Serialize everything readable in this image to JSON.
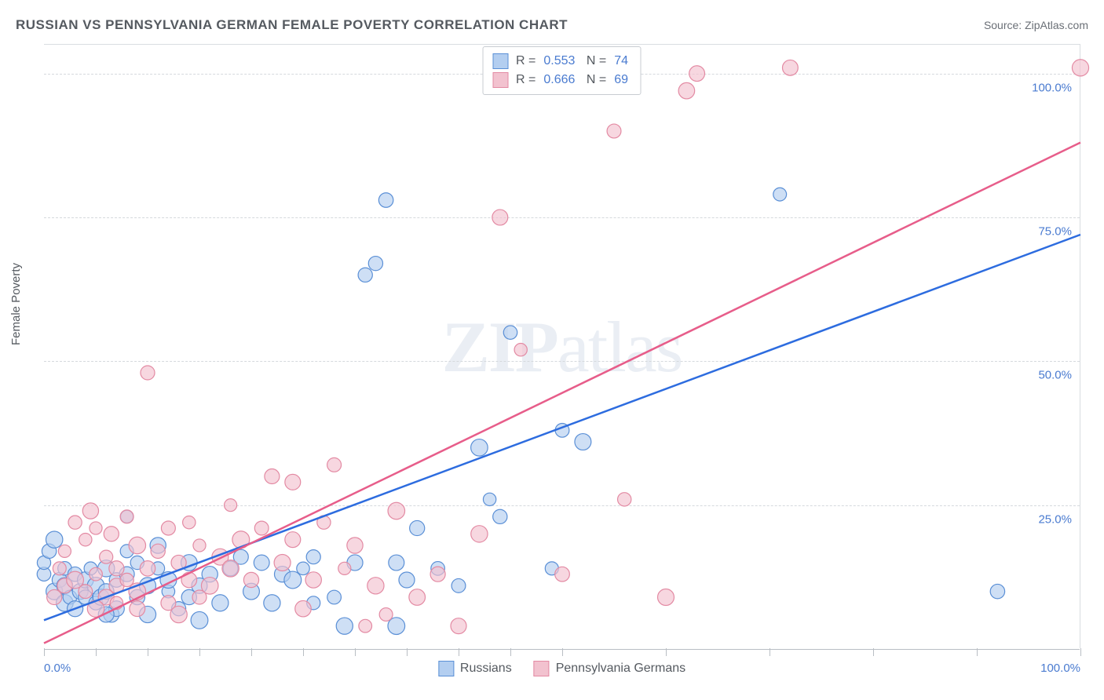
{
  "header": {
    "title": "RUSSIAN VS PENNSYLVANIA GERMAN FEMALE POVERTY CORRELATION CHART",
    "source": "Source: ZipAtlas.com"
  },
  "chart": {
    "type": "scatter",
    "ylabel": "Female Poverty",
    "xlim": [
      0,
      100
    ],
    "ylim": [
      0,
      105
    ],
    "xtick_positions": [
      0,
      5,
      10,
      15,
      20,
      25,
      30,
      35,
      40,
      45,
      50,
      60,
      70,
      80,
      90,
      100
    ],
    "xtick_labels": {
      "0": "0.0%",
      "100": "100.0%"
    },
    "ytick_positions": [
      25,
      50,
      75,
      100
    ],
    "ytick_labels": {
      "25": "25.0%",
      "50": "50.0%",
      "75": "75.0%",
      "100": "100.0%"
    },
    "grid_color": "#d5d9dd",
    "axis_color": "#b9bec4",
    "background_color": "#ffffff",
    "label_color": "#4a7bd0",
    "text_color": "#555a60",
    "watermark": "ZIPatlas",
    "series": [
      {
        "name": "Russians",
        "point_fill": "#b3cef0",
        "point_stroke": "#5a8fd6",
        "line_color": "#2d6cdf",
        "marker_opacity": 0.65,
        "r_value": "0.553",
        "n_value": "74",
        "regression": {
          "x0": 0,
          "y0": 5,
          "x1": 100,
          "y1": 72
        },
        "points": [
          [
            0,
            13
          ],
          [
            0,
            15
          ],
          [
            0.5,
            17
          ],
          [
            1,
            19
          ],
          [
            1,
            10
          ],
          [
            1.5,
            12
          ],
          [
            2,
            14
          ],
          [
            2,
            8
          ],
          [
            2,
            11
          ],
          [
            2.5,
            9
          ],
          [
            3,
            13
          ],
          [
            3,
            7
          ],
          [
            3.5,
            10
          ],
          [
            4,
            9
          ],
          [
            4,
            12
          ],
          [
            4.5,
            14
          ],
          [
            5,
            8
          ],
          [
            5,
            11
          ],
          [
            5.5,
            9
          ],
          [
            6,
            10
          ],
          [
            6,
            14
          ],
          [
            6.5,
            6
          ],
          [
            7,
            12
          ],
          [
            7,
            7
          ],
          [
            8,
            23
          ],
          [
            8,
            13
          ],
          [
            9,
            9
          ],
          [
            9,
            15
          ],
          [
            10,
            11
          ],
          [
            10,
            6
          ],
          [
            11,
            14
          ],
          [
            12,
            10
          ],
          [
            12,
            12
          ],
          [
            13,
            7
          ],
          [
            14,
            15
          ],
          [
            14,
            9
          ],
          [
            15,
            11
          ],
          [
            16,
            13
          ],
          [
            17,
            8
          ],
          [
            18,
            14
          ],
          [
            19,
            16
          ],
          [
            20,
            10
          ],
          [
            21,
            15
          ],
          [
            22,
            8
          ],
          [
            23,
            13
          ],
          [
            24,
            12
          ],
          [
            25,
            14
          ],
          [
            26,
            16
          ],
          [
            28,
            9
          ],
          [
            29,
            4
          ],
          [
            30,
            15
          ],
          [
            31,
            65
          ],
          [
            32,
            67
          ],
          [
            33,
            78
          ],
          [
            34,
            4
          ],
          [
            35,
            12
          ],
          [
            36,
            21
          ],
          [
            38,
            14
          ],
          [
            40,
            11
          ],
          [
            42,
            35
          ],
          [
            43,
            26
          ],
          [
            44,
            23
          ],
          [
            45,
            55
          ],
          [
            49,
            14
          ],
          [
            50,
            38
          ],
          [
            52,
            36
          ],
          [
            71,
            79
          ],
          [
            92,
            10
          ],
          [
            34,
            15
          ],
          [
            26,
            8
          ],
          [
            15,
            5
          ],
          [
            11,
            18
          ],
          [
            8,
            17
          ],
          [
            6,
            6
          ]
        ]
      },
      {
        "name": "Pennsylvania Germans",
        "point_fill": "#f2c2cf",
        "point_stroke": "#e38aa3",
        "line_color": "#e75d8a",
        "marker_opacity": 0.65,
        "r_value": "0.666",
        "n_value": "69",
        "regression": {
          "x0": 0,
          "y0": 1,
          "x1": 100,
          "y1": 88
        },
        "points": [
          [
            1,
            9
          ],
          [
            1.5,
            14
          ],
          [
            2,
            11
          ],
          [
            2,
            17
          ],
          [
            3,
            12
          ],
          [
            3,
            22
          ],
          [
            4,
            10
          ],
          [
            4,
            19
          ],
          [
            4.5,
            24
          ],
          [
            5,
            13
          ],
          [
            5,
            21
          ],
          [
            6,
            16
          ],
          [
            6,
            9
          ],
          [
            6.5,
            20
          ],
          [
            7,
            14
          ],
          [
            7,
            11
          ],
          [
            8,
            23
          ],
          [
            8,
            12
          ],
          [
            9,
            18
          ],
          [
            9,
            10
          ],
          [
            10,
            48
          ],
          [
            10,
            14
          ],
          [
            11,
            17
          ],
          [
            12,
            21
          ],
          [
            12,
            8
          ],
          [
            13,
            15
          ],
          [
            14,
            12
          ],
          [
            14,
            22
          ],
          [
            15,
            18
          ],
          [
            16,
            11
          ],
          [
            17,
            16
          ],
          [
            18,
            14
          ],
          [
            18,
            25
          ],
          [
            19,
            19
          ],
          [
            20,
            12
          ],
          [
            21,
            21
          ],
          [
            22,
            30
          ],
          [
            23,
            15
          ],
          [
            24,
            29
          ],
          [
            24,
            19
          ],
          [
            25,
            7
          ],
          [
            26,
            12
          ],
          [
            27,
            22
          ],
          [
            28,
            32
          ],
          [
            29,
            14
          ],
          [
            30,
            18
          ],
          [
            31,
            4
          ],
          [
            32,
            11
          ],
          [
            33,
            6
          ],
          [
            34,
            24
          ],
          [
            36,
            9
          ],
          [
            38,
            13
          ],
          [
            40,
            4
          ],
          [
            42,
            20
          ],
          [
            44,
            75
          ],
          [
            46,
            52
          ],
          [
            50,
            13
          ],
          [
            55,
            90
          ],
          [
            56,
            26
          ],
          [
            60,
            9
          ],
          [
            62,
            97
          ],
          [
            63,
            100
          ],
          [
            72,
            101
          ],
          [
            100,
            101
          ],
          [
            13,
            6
          ],
          [
            15,
            9
          ],
          [
            9,
            7
          ],
          [
            7,
            8
          ],
          [
            5,
            7
          ]
        ]
      }
    ],
    "bottom_legend": [
      {
        "label": "Russians",
        "fill": "#b3cef0",
        "stroke": "#5a8fd6"
      },
      {
        "label": "Pennsylvania Germans",
        "fill": "#f2c2cf",
        "stroke": "#e38aa3"
      }
    ]
  }
}
